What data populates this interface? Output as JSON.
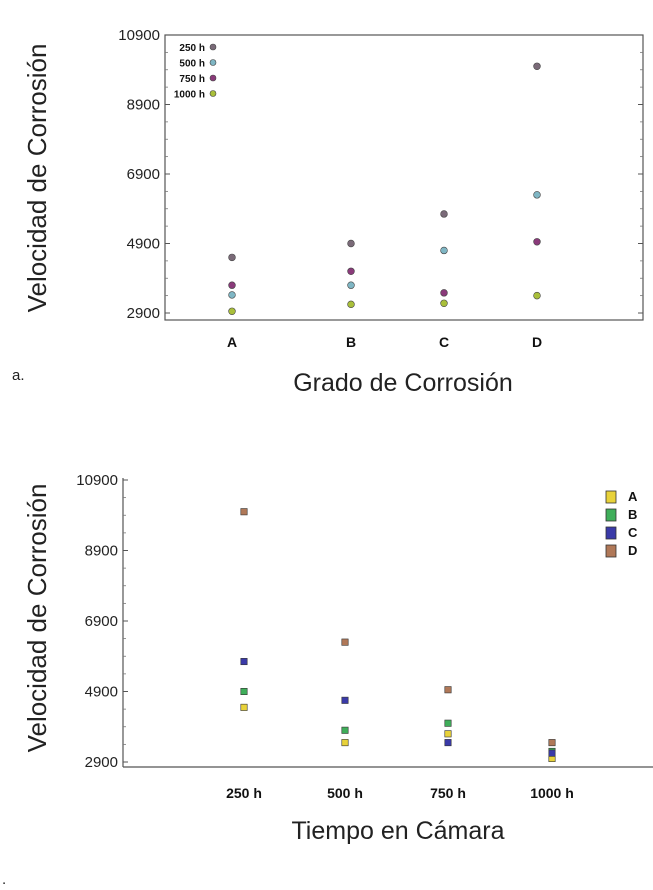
{
  "chart_data": [
    {
      "panel_label": "a.",
      "type": "scatter",
      "ylabel": "Velocidad de Corrosión",
      "xlabel": "Grado de Corrosión",
      "categories": [
        "A",
        "B",
        "C",
        "D"
      ],
      "yticks": [
        2900,
        4900,
        6900,
        8900,
        10900
      ],
      "ylim": [
        2600,
        10900
      ],
      "legend_position": "top-left",
      "series": [
        {
          "name": "250 h",
          "color": "#7a6a78",
          "values": [
            4500,
            4900,
            5750,
            10000
          ]
        },
        {
          "name": "500 h",
          "color": "#7fb6c4",
          "values": [
            3420,
            3700,
            4700,
            6300
          ]
        },
        {
          "name": "750 h",
          "color": "#8a3a7a",
          "values": [
            3700,
            4100,
            3480,
            4950
          ]
        },
        {
          "name": "1000 h",
          "color": "#a9bf3a",
          "values": [
            2950,
            3150,
            3180,
            3400
          ]
        }
      ]
    },
    {
      "panel_label": ".",
      "type": "scatter",
      "ylabel": "Velocidad de Corrosión",
      "xlabel": "Tiempo en Cámara",
      "categories": [
        "250 h",
        "500 h",
        "750 h",
        "1000 h"
      ],
      "yticks": [
        2900,
        4900,
        6900,
        8900,
        10900
      ],
      "ylim": [
        2600,
        10900
      ],
      "legend_position": "top-right",
      "series": [
        {
          "name": "A",
          "color": "#e8d23a",
          "values": [
            4450,
            3450,
            3700,
            3000
          ]
        },
        {
          "name": "B",
          "color": "#3fae5a",
          "values": [
            4900,
            3800,
            4000,
            3200
          ]
        },
        {
          "name": "C",
          "color": "#3a3aa8",
          "values": [
            5750,
            4650,
            3450,
            3150
          ]
        },
        {
          "name": "D",
          "color": "#b07858",
          "values": [
            10000,
            6300,
            4950,
            3450
          ]
        }
      ]
    }
  ]
}
